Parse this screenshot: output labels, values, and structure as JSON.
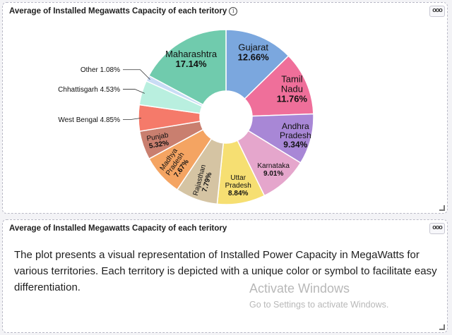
{
  "chart_panel": {
    "title": "Average of Installed Megawatts Capacity of each teritory",
    "info_icon": "info-icon",
    "menu_label": "ooo"
  },
  "text_panel": {
    "title": "Average of Installed Megawatts Capacity of each teritory",
    "menu_label": "ooo",
    "description": "The plot presents a visual representation of Installed Power Capacity in MegaWatts for various territories. Each territory is depicted with a unique color or symbol to facilitate easy differentiation."
  },
  "watermark": {
    "title": "Activate Windows",
    "subtitle": "Go to Settings to activate Windows."
  },
  "chart_data": {
    "type": "pie",
    "donut": true,
    "title": "Average of Installed Megawatts Capacity of each teritory",
    "slices": [
      {
        "label": "Gujarat",
        "value": 12.66,
        "display": "12.66%",
        "color": "#7ba7de"
      },
      {
        "label": "Tamil Nadu",
        "value": 11.76,
        "display": "11.76%",
        "color": "#ef6f9a"
      },
      {
        "label": "Andhra Pradesh",
        "value": 9.34,
        "display": "9.34%",
        "color": "#a887d6"
      },
      {
        "label": "Karnataka",
        "value": 9.01,
        "display": "9.01%",
        "color": "#e5a6cc"
      },
      {
        "label": "Uttar Pradesh",
        "value": 8.84,
        "display": "8.84%",
        "color": "#f6df72"
      },
      {
        "label": "Rajasthan",
        "value": 7.79,
        "display": "7.79%",
        "color": "#d5c4a3"
      },
      {
        "label": "Madhya Pradesh",
        "value": 7.67,
        "display": "7.67%",
        "color": "#f4a462"
      },
      {
        "label": "Punjab",
        "value": 5.32,
        "display": "5.32%",
        "color": "#c97f6f"
      },
      {
        "label": "West Bengal",
        "value": 4.85,
        "display": "4.85%",
        "color": "#f57a6a"
      },
      {
        "label": "Chhattisgarh",
        "value": 4.53,
        "display": "4.53%",
        "color": "#b9efdf"
      },
      {
        "label": "Other",
        "value": 1.08,
        "display": "1.08%",
        "color": "#c9dcf5"
      },
      {
        "label": "Maharashtra",
        "value": 17.14,
        "display": "17.14%",
        "color": "#70cbad"
      }
    ]
  }
}
